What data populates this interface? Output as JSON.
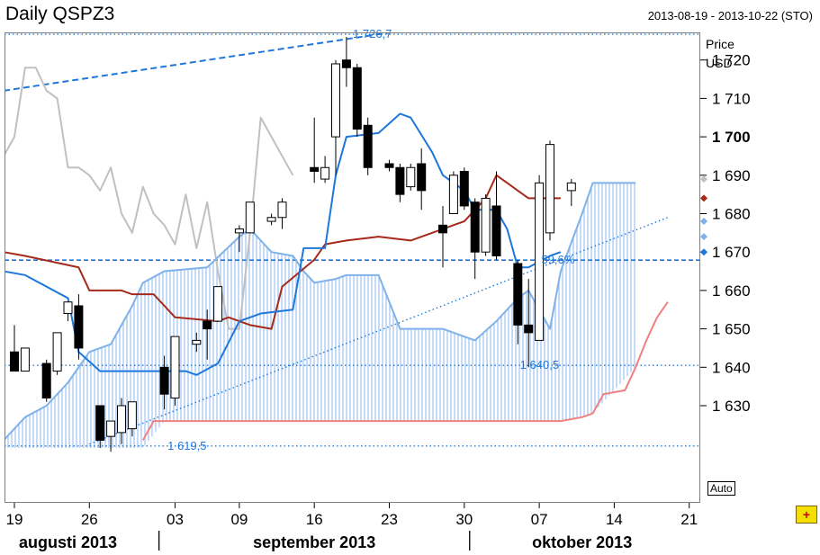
{
  "header": {
    "title": "Daily QSPZ3",
    "date_range": "2013-08-19 - 2013-10-22 (STO)"
  },
  "controls": {
    "auto_label": "Auto",
    "corner_icon": "add-indicator-icon"
  },
  "colors": {
    "candle_up": "#ffffff",
    "candle_down": "#000000",
    "conversion_line": "#1e78dc",
    "base_line": "#a52a1a",
    "lagging_span": "#c0c0c0",
    "span_a": "#7fb2ea",
    "span_b": "#f08080",
    "cloud_fill": "#a8c8f0",
    "trend_lines": "#1e78dc"
  },
  "chart_data": {
    "type": "candlestick",
    "title": "Daily QSPZ3",
    "y_unit_labels": [
      "Price",
      "USD"
    ],
    "ylim": [
      1619,
      1733
    ],
    "y_ticks": [
      1720,
      1710,
      1700,
      1690,
      1680,
      1670,
      1660,
      1650,
      1640,
      1630
    ],
    "y_tick_labels": [
      "1 720",
      "1 710",
      "1 700",
      "1 690",
      "1 680",
      "1 670",
      "1 660",
      "1 650",
      "1 640",
      "1 630"
    ],
    "y_tick_bold": "1 700",
    "x_tick_labels": [
      "19",
      "26",
      "03",
      "09",
      "16",
      "23",
      "30",
      "07",
      "14",
      "21"
    ],
    "x_tick_days": [
      0,
      7,
      15,
      21,
      28,
      35,
      42,
      49,
      56,
      63
    ],
    "month_labels": [
      {
        "label": "augusti 2013",
        "day": 5
      },
      {
        "label": "september 2013",
        "day": 28
      },
      {
        "label": "oktober 2013",
        "day": 53
      }
    ],
    "month_separator_days": [
      13.5,
      42.5
    ],
    "candles": [
      {
        "day": 0,
        "open": 1644,
        "high": 1651,
        "low": 1640,
        "close": 1639
      },
      {
        "day": 1,
        "open": 1639,
        "high": 1645,
        "low": 1639,
        "close": 1645
      },
      {
        "day": 3,
        "open": 1641,
        "high": 1642,
        "low": 1631,
        "close": 1632
      },
      {
        "day": 4,
        "open": 1639,
        "high": 1649,
        "low": 1638,
        "close": 1649
      },
      {
        "day": 5,
        "open": 1654,
        "high": 1657,
        "low": 1652,
        "close": 1657
      },
      {
        "day": 6,
        "open": 1656,
        "high": 1659,
        "low": 1642,
        "close": 1645
      },
      {
        "day": 8,
        "open": 1630,
        "high": 1630,
        "low": 1619,
        "close": 1621
      },
      {
        "day": 9,
        "open": 1622,
        "high": 1626,
        "low": 1618,
        "close": 1626
      },
      {
        "day": 10,
        "open": 1623,
        "high": 1632,
        "low": 1620,
        "close": 1630
      },
      {
        "day": 11,
        "open": 1624,
        "high": 1631,
        "low": 1622,
        "close": 1631
      },
      {
        "day": 14,
        "open": 1640,
        "high": 1643,
        "low": 1629,
        "close": 1633
      },
      {
        "day": 15,
        "open": 1632,
        "high": 1648,
        "low": 1630,
        "close": 1648
      },
      {
        "day": 17,
        "open": 1646,
        "high": 1649,
        "low": 1644,
        "close": 1647
      },
      {
        "day": 18,
        "open": 1652,
        "high": 1655,
        "low": 1642,
        "close": 1650
      },
      {
        "day": 19,
        "open": 1652,
        "high": 1661,
        "low": 1652,
        "close": 1661
      },
      {
        "day": 21,
        "open": 1675,
        "high": 1677,
        "low": 1670,
        "close": 1676
      },
      {
        "day": 22,
        "open": 1675,
        "high": 1683,
        "low": 1675,
        "close": 1683
      },
      {
        "day": 24,
        "open": 1678,
        "high": 1680,
        "low": 1677,
        "close": 1679
      },
      {
        "day": 25,
        "open": 1679,
        "high": 1684,
        "low": 1676,
        "close": 1683
      },
      {
        "day": 28,
        "open": 1692,
        "high": 1705,
        "low": 1688,
        "close": 1691
      },
      {
        "day": 29,
        "open": 1689,
        "high": 1695,
        "low": 1688,
        "close": 1692
      },
      {
        "day": 30,
        "open": 1700,
        "high": 1720,
        "low": 1690,
        "close": 1719
      },
      {
        "day": 31,
        "open": 1720,
        "high": 1726,
        "low": 1713,
        "close": 1718
      },
      {
        "day": 32,
        "open": 1718,
        "high": 1719,
        "low": 1700,
        "close": 1702
      },
      {
        "day": 33,
        "open": 1703,
        "high": 1705,
        "low": 1690,
        "close": 1692
      },
      {
        "day": 35,
        "open": 1693,
        "high": 1694,
        "low": 1691,
        "close": 1692
      },
      {
        "day": 36,
        "open": 1692,
        "high": 1693,
        "low": 1683,
        "close": 1685
      },
      {
        "day": 37,
        "open": 1687,
        "high": 1693,
        "low": 1686,
        "close": 1692
      },
      {
        "day": 38,
        "open": 1693,
        "high": 1697,
        "low": 1681,
        "close": 1686
      },
      {
        "day": 40,
        "open": 1677,
        "high": 1682,
        "low": 1666,
        "close": 1675
      },
      {
        "day": 41,
        "open": 1680,
        "high": 1691,
        "low": 1680,
        "close": 1690
      },
      {
        "day": 42,
        "open": 1691,
        "high": 1692,
        "low": 1681,
        "close": 1682
      },
      {
        "day": 43,
        "open": 1683,
        "high": 1684,
        "low": 1663,
        "close": 1670
      },
      {
        "day": 44,
        "open": 1670,
        "high": 1685,
        "low": 1669,
        "close": 1684
      },
      {
        "day": 45,
        "open": 1682,
        "high": 1691,
        "low": 1668,
        "close": 1669
      },
      {
        "day": 47,
        "open": 1667,
        "high": 1668,
        "low": 1646,
        "close": 1651
      },
      {
        "day": 48,
        "open": 1651,
        "high": 1663,
        "low": 1640,
        "close": 1649
      },
      {
        "day": 49,
        "open": 1647,
        "high": 1690,
        "low": 1647,
        "close": 1688
      },
      {
        "day": 50,
        "open": 1675,
        "high": 1699,
        "low": 1673,
        "close": 1698
      },
      {
        "day": 52,
        "open": 1686,
        "high": 1689,
        "low": 1682,
        "close": 1688
      }
    ],
    "conversion_line": [
      [
        -1,
        1665
      ],
      [
        1,
        1664
      ],
      [
        5,
        1658
      ],
      [
        6,
        1644
      ],
      [
        8,
        1639
      ],
      [
        16,
        1639
      ],
      [
        17,
        1638
      ],
      [
        19,
        1641
      ],
      [
        21,
        1652
      ],
      [
        23,
        1654
      ],
      [
        26,
        1655
      ],
      [
        27,
        1671
      ],
      [
        29,
        1671
      ],
      [
        30,
        1690
      ],
      [
        31,
        1700
      ],
      [
        34,
        1701
      ],
      [
        36,
        1706
      ],
      [
        37,
        1705
      ],
      [
        39,
        1696
      ],
      [
        40,
        1690
      ],
      [
        42,
        1686
      ],
      [
        43,
        1681
      ],
      [
        45,
        1681
      ],
      [
        46,
        1676
      ],
      [
        47,
        1666
      ],
      [
        48,
        1666
      ],
      [
        50,
        1669
      ],
      [
        51,
        1670
      ]
    ],
    "base_line": [
      [
        -1,
        1670
      ],
      [
        1,
        1669
      ],
      [
        6,
        1666
      ],
      [
        7,
        1660
      ],
      [
        10,
        1660
      ],
      [
        11,
        1659
      ],
      [
        13,
        1659
      ],
      [
        14,
        1656
      ],
      [
        15,
        1653
      ],
      [
        19,
        1652
      ],
      [
        20,
        1653
      ],
      [
        22,
        1651
      ],
      [
        24,
        1650
      ],
      [
        25,
        1661
      ],
      [
        28,
        1668
      ],
      [
        29,
        1672
      ],
      [
        31,
        1673
      ],
      [
        34,
        1674
      ],
      [
        37,
        1673
      ],
      [
        40,
        1676
      ],
      [
        42,
        1678
      ],
      [
        44,
        1684
      ],
      [
        45,
        1690
      ],
      [
        46,
        1688
      ],
      [
        47,
        1686
      ],
      [
        48,
        1684
      ],
      [
        51,
        1684
      ]
    ],
    "lagging_span": [
      [
        -1,
        1695
      ],
      [
        0,
        1700
      ],
      [
        1,
        1718
      ],
      [
        2,
        1718
      ],
      [
        3,
        1712
      ],
      [
        4,
        1710
      ],
      [
        5,
        1692
      ],
      [
        6,
        1692
      ],
      [
        7,
        1690
      ],
      [
        8,
        1686
      ],
      [
        9,
        1692
      ],
      [
        10,
        1680
      ],
      [
        11,
        1675
      ],
      [
        12,
        1687
      ],
      [
        13,
        1680
      ],
      [
        14,
        1677
      ],
      [
        15,
        1672
      ],
      [
        16,
        1685
      ],
      [
        17,
        1671
      ],
      [
        18,
        1683
      ],
      [
        19,
        1665
      ],
      [
        20,
        1650
      ],
      [
        21,
        1650
      ],
      [
        22,
        1675
      ],
      [
        23,
        1705
      ],
      [
        24,
        1700
      ],
      [
        25,
        1695
      ],
      [
        26,
        1690
      ]
    ],
    "span_a": [
      [
        -1,
        1621
      ],
      [
        1,
        1627
      ],
      [
        3,
        1630
      ],
      [
        5,
        1636
      ],
      [
        7,
        1644
      ],
      [
        9,
        1646
      ],
      [
        11,
        1656
      ],
      [
        12,
        1662
      ],
      [
        14,
        1665
      ],
      [
        18,
        1666
      ],
      [
        21,
        1674
      ],
      [
        22,
        1676
      ],
      [
        24,
        1670
      ],
      [
        26,
        1669
      ],
      [
        27,
        1665
      ],
      [
        28,
        1662
      ],
      [
        30,
        1663
      ],
      [
        31,
        1664
      ],
      [
        34,
        1664
      ],
      [
        36,
        1650
      ],
      [
        40,
        1650
      ],
      [
        42,
        1648
      ],
      [
        43,
        1647
      ],
      [
        45,
        1652
      ],
      [
        47,
        1658
      ],
      [
        48,
        1660
      ],
      [
        50,
        1650
      ],
      [
        51,
        1665
      ],
      [
        53,
        1680
      ],
      [
        54,
        1688
      ],
      [
        58,
        1688
      ]
    ],
    "span_b": [
      [
        12,
        1621
      ],
      [
        13,
        1626
      ],
      [
        51,
        1626
      ],
      [
        53,
        1627
      ],
      [
        54,
        1628
      ],
      [
        55,
        1633
      ],
      [
        57,
        1634
      ],
      [
        58,
        1640
      ],
      [
        59,
        1647
      ],
      [
        60,
        1653
      ],
      [
        61,
        1657
      ]
    ],
    "horizontal_lines": [
      {
        "value": 1726.7,
        "label": "1 726,7",
        "label_day": 31.6
      },
      {
        "value": 1667.9,
        "label": "59,6%",
        "label_day": 49.2
      },
      {
        "value": 1640.5,
        "label": "1 640,5",
        "label_day": 47.2
      },
      {
        "value": 1619.5,
        "label": "1 619,5",
        "label_day": 14.3
      }
    ],
    "trend_lines": [
      {
        "style": "dashed",
        "from": [
          -1,
          1712
        ],
        "to": [
          49,
          1733
        ]
      },
      {
        "style": "dotted",
        "from": [
          7,
          1620
        ],
        "to": [
          61,
          1679
        ]
      }
    ],
    "price_axis_markers": [
      {
        "value": 1689,
        "color": "#c0c0c0"
      },
      {
        "value": 1684,
        "color": "#a52a1a"
      },
      {
        "value": 1678,
        "color": "#7fb2ea"
      },
      {
        "value": 1674,
        "color": "#7fb2ea"
      },
      {
        "value": 1670,
        "color": "#1e78dc"
      }
    ]
  }
}
